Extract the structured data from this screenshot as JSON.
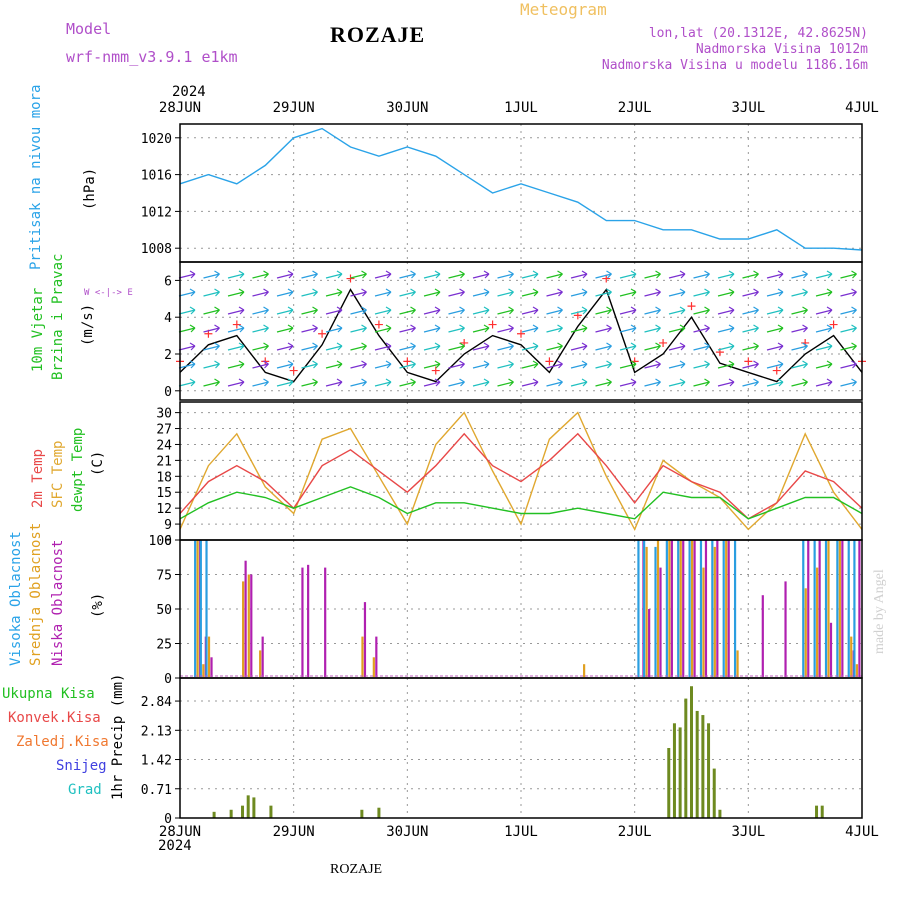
{
  "header": {
    "model_label": "Model",
    "model_name": "wrf-nmm_v3.9.1 e1km",
    "title": "ROZAJE",
    "meteogram": "Meteogram",
    "lonlat": "lon,lat (20.1312E, 42.8625N)",
    "elevation": "Nadmorska Visina 1012m",
    "model_elevation": "Nadmorska Visina u modelu 1186.16m"
  },
  "footer": {
    "station": "ROZAJE",
    "credit": "made by Angel"
  },
  "axis": {
    "year": "2024",
    "dates": [
      "28JUN",
      "29JUN",
      "30JUN",
      "1JUL",
      "2JUL",
      "3JUL",
      "4JUL"
    ]
  },
  "labels": {
    "pressure": "Pritisak na nivou mora",
    "pressure_unit": "(hPa)",
    "wind1": "10m Vjetar",
    "wind2": "Brzina i Pravac",
    "wind_unit": "(m/s)",
    "compass": "W <-|-> E",
    "temp2m": "2m Temp",
    "sfctemp": "SFC Temp",
    "dewpt": "dewpt Temp",
    "temp_unit": "(C)",
    "cloud_high": "Visoka Oblacnost",
    "cloud_mid": "Srednja Oblacnost",
    "cloud_low": "Niska Oblacnost",
    "cloud_unit": "(%)",
    "precip_total": "Ukupna Kisa",
    "precip_conv": "Konvek.Kisa",
    "precip_frz": "Zaledj.Kisa",
    "precip_snow": "Snijeg",
    "precip_hail": "Grad",
    "precip_unit": "1hr Precip (mm)"
  },
  "colors": {
    "pressure": "#2aa3e8",
    "temp2m": "#e84848",
    "sfctemp": "#e0a830",
    "dewpt": "#22c022",
    "cloud_high": "#2a9ee0",
    "cloud_mid": "#e0a020",
    "cloud_low": "#b020b0",
    "precip_total": "#6e8a20",
    "wind_speed": "#000000",
    "wind_gust": "#ff3030"
  },
  "chart_data": [
    {
      "type": "line",
      "x": [
        0,
        0.25,
        0.5,
        0.75,
        1.0,
        1.25,
        1.5,
        1.75,
        2.0,
        2.25,
        2.5,
        2.75,
        3.0,
        3.25,
        3.5,
        3.75,
        4.0,
        4.25,
        4.5,
        4.75,
        5.0,
        5.25,
        5.5,
        5.75,
        6.0
      ],
      "series": [
        {
          "values": [
            1015,
            1016,
            1015,
            1017,
            1020,
            1021,
            1019,
            1018,
            1019,
            1018,
            1016,
            1014,
            1015,
            1014,
            1013,
            1011,
            1011,
            1010,
            1010,
            1009,
            1009,
            1010,
            1008,
            1008,
            1007.8
          ]
        }
      ],
      "yticks": [
        1008,
        1012,
        1016,
        1020
      ],
      "ylim": [
        1006.5,
        1021.5
      ]
    },
    {
      "type": "line",
      "x": [
        0,
        0.25,
        0.5,
        0.75,
        1.0,
        1.25,
        1.5,
        1.75,
        2.0,
        2.25,
        2.5,
        2.75,
        3.0,
        3.25,
        3.5,
        3.75,
        4.0,
        4.25,
        4.5,
        4.75,
        5.0,
        5.25,
        5.5,
        5.75,
        6.0
      ],
      "series": [
        {
          "values": [
            1,
            2.5,
            3,
            1,
            0.5,
            2.5,
            5.5,
            3,
            1,
            0.5,
            2,
            3,
            2.5,
            1,
            3.5,
            5.5,
            1,
            2,
            4,
            1.5,
            1,
            0.5,
            2,
            3,
            1
          ]
        }
      ],
      "yticks": [
        0,
        2,
        4,
        6
      ],
      "ylim": [
        -0.5,
        7
      ]
    },
    {
      "type": "line",
      "x": [
        0,
        0.25,
        0.5,
        0.75,
        1.0,
        1.25,
        1.5,
        1.75,
        2.0,
        2.25,
        2.5,
        2.75,
        3.0,
        3.25,
        3.5,
        3.75,
        4.0,
        4.25,
        4.5,
        4.75,
        5.0,
        5.25,
        5.5,
        5.75,
        6.0
      ],
      "series": [
        {
          "values": [
            11,
            17,
            20,
            17,
            12,
            20,
            23,
            19,
            15,
            20,
            26,
            20,
            17,
            21,
            26,
            20,
            13,
            20,
            17,
            15,
            10,
            13,
            19,
            17,
            12
          ]
        },
        {
          "values": [
            8,
            20,
            26,
            16,
            11,
            25,
            27,
            18,
            9,
            24,
            30,
            19,
            9,
            25,
            30,
            18,
            8,
            21,
            17,
            14,
            8,
            13,
            26,
            15,
            8
          ]
        },
        {
          "values": [
            10,
            13,
            15,
            14,
            12,
            14,
            16,
            14,
            11,
            13,
            13,
            12,
            11,
            11,
            12,
            11,
            10,
            15,
            14,
            14,
            10,
            12,
            14,
            14,
            11
          ]
        }
      ],
      "yticks": [
        6,
        9,
        12,
        15,
        18,
        21,
        24,
        27,
        30
      ],
      "ylim": [
        6,
        32
      ]
    },
    {
      "type": "bar",
      "x": [
        0.15,
        0.2,
        0.25,
        0.55,
        0.6,
        0.7,
        1.05,
        1.1,
        1.25,
        1.6,
        1.7,
        3.55,
        4.05,
        4.1,
        4.2,
        4.3,
        4.4,
        4.5,
        4.6,
        4.7,
        4.8,
        4.9,
        5.1,
        5.3,
        5.5,
        5.6,
        5.7,
        5.8,
        5.9,
        5.95
      ],
      "series": [
        {
          "values": [
            100,
            100,
            100,
            0,
            0,
            0,
            0,
            0,
            0,
            0,
            0,
            0,
            100,
            100,
            95,
            100,
            100,
            100,
            100,
            100,
            100,
            100,
            0,
            0,
            100,
            100,
            100,
            100,
            100,
            100
          ]
        },
        {
          "values": [
            100,
            10,
            30,
            70,
            75,
            20,
            0,
            0,
            0,
            30,
            15,
            10,
            0,
            95,
            100,
            100,
            100,
            100,
            80,
            95,
            100,
            20,
            0,
            0,
            65,
            80,
            100,
            100,
            30,
            10
          ]
        },
        {
          "values": [
            100,
            30,
            15,
            85,
            75,
            30,
            80,
            82,
            80,
            55,
            30,
            0,
            100,
            50,
            80,
            100,
            100,
            100,
            100,
            100,
            100,
            0,
            60,
            70,
            100,
            100,
            40,
            100,
            20,
            100
          ]
        }
      ],
      "yticks": [
        0,
        25,
        50,
        75,
        100
      ],
      "ylim": [
        0,
        100
      ]
    },
    {
      "type": "bar",
      "x": [
        0.3,
        0.45,
        0.55,
        0.6,
        0.65,
        0.8,
        1.6,
        1.75,
        4.3,
        4.35,
        4.4,
        4.45,
        4.5,
        4.55,
        4.6,
        4.65,
        4.7,
        4.75,
        5.6,
        5.65
      ],
      "series": [
        {
          "values": [
            0.15,
            0.2,
            0.3,
            0.55,
            0.5,
            0.3,
            0.2,
            0.25,
            1.7,
            2.3,
            2.2,
            2.9,
            3.2,
            2.6,
            2.5,
            2.3,
            1.2,
            0.2,
            0.3,
            0.3
          ]
        }
      ],
      "yticks": [
        0,
        0.71,
        1.42,
        2.13,
        2.84
      ],
      "ylim": [
        0,
        3.4
      ]
    }
  ]
}
